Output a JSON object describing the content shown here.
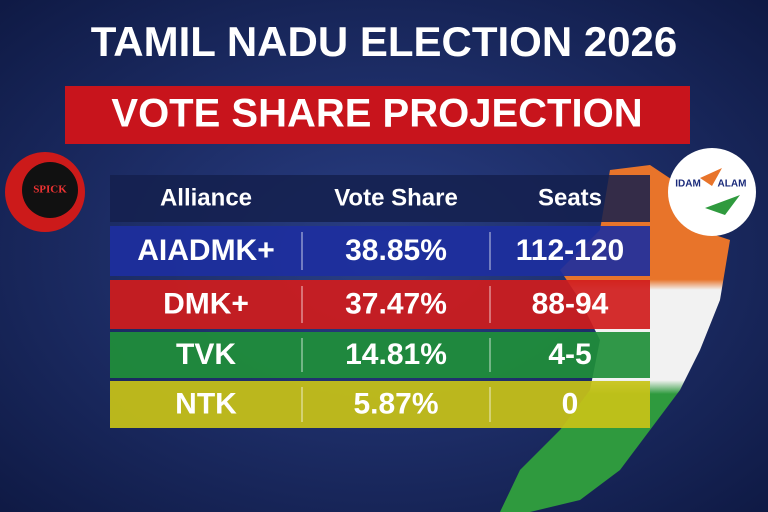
{
  "header": {
    "title": "TAMIL NADU ELECTION 2026",
    "subtitle": "VOTE SHARE PROJECTION"
  },
  "logos": {
    "left": "SPICK",
    "right_first": "IDAM",
    "right_second": "ALAM"
  },
  "table": {
    "columns": [
      "Alliance",
      "Vote Share",
      "Seats"
    ],
    "rows": [
      [
        "AIADMK+",
        "38.85%",
        "112-120"
      ],
      [
        "DMK+",
        "37.47%",
        "88-94"
      ],
      [
        "TVK",
        "14.81%",
        "4-5"
      ],
      [
        "NTK",
        "5.87%",
        "0"
      ]
    ],
    "row_colors": [
      "#1d2f9e",
      "#d01c1c",
      "#1f8f3a",
      "#c9c317"
    ]
  }
}
